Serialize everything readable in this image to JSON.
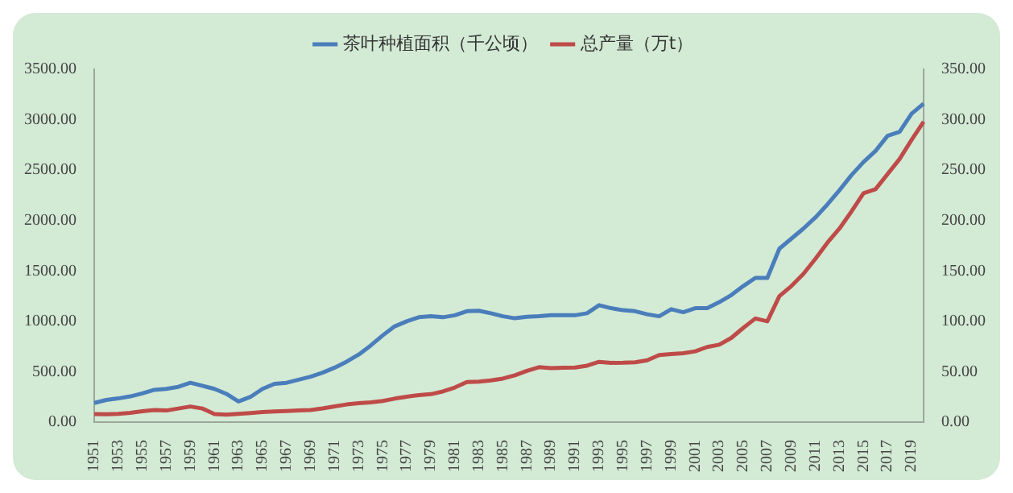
{
  "chart_data": {
    "type": "line",
    "categories": [
      "1951",
      null,
      "1953",
      null,
      "1955",
      null,
      "1957",
      null,
      "1959",
      null,
      "1961",
      null,
      "1963",
      null,
      "1965",
      null,
      "1967",
      null,
      "1969",
      null,
      "1971",
      null,
      "1973",
      null,
      "1975",
      null,
      "1977",
      null,
      "1979",
      null,
      "1981",
      null,
      "1983",
      null,
      "1985",
      null,
      "1987",
      null,
      "1989",
      null,
      "1991",
      null,
      "1993",
      null,
      "1995",
      null,
      "1997",
      null,
      "1999",
      null,
      "2001",
      null,
      "2003",
      null,
      "2005",
      null,
      "2007",
      null,
      "2009",
      null,
      "2011",
      null,
      "2013",
      null,
      "2015",
      null,
      "2017",
      null,
      "2019",
      null
    ],
    "series": [
      {
        "name": "茶叶种植面积（千公顷）",
        "color": "#4a7ebb",
        "values": [
          190,
          220,
          235,
          255,
          285,
          320,
          330,
          350,
          390,
          360,
          330,
          280,
          205,
          250,
          330,
          380,
          390,
          420,
          450,
          490,
          540,
          600,
          670,
          760,
          860,
          950,
          1000,
          1040,
          1050,
          1040,
          1060,
          1100,
          1105,
          1080,
          1050,
          1030,
          1045,
          1050,
          1060,
          1060,
          1060,
          1080,
          1160,
          1130,
          1110,
          1100,
          1070,
          1050,
          1120,
          1090,
          1130,
          1130,
          1190,
          1260,
          1350,
          1430,
          1430,
          1720,
          1820,
          1920,
          2030,
          2160,
          2300,
          2450,
          2580,
          2690,
          2840,
          2880,
          3060,
          3160
        ]
      },
      {
        "name": "总产量（万t）",
        "color": "#be4b48",
        "axis": "y2",
        "values": [
          8,
          7.8,
          8.2,
          9.2,
          10.8,
          12,
          11.5,
          13.5,
          15.5,
          13.5,
          8,
          7.4,
          8.2,
          9,
          10,
          10.5,
          11,
          11.5,
          12,
          13.6,
          15.6,
          17.5,
          18.8,
          19.6,
          21,
          23.3,
          25.2,
          26.8,
          27.7,
          30.4,
          34.3,
          39.7,
          40.1,
          41.4,
          43.2,
          46.4,
          50.8,
          54.5,
          53.5,
          54,
          54.2,
          56,
          59.8,
          58.8,
          58.9,
          59.3,
          61.3,
          66.5,
          67.6,
          68.3,
          70.2,
          74.5,
          76.8,
          83.5,
          93.5,
          102.8,
          100,
          125,
          135,
          147,
          162,
          178,
          192,
          209,
          227,
          231,
          246,
          261,
          280,
          298
        ]
      }
    ],
    "ylim": [
      0,
      3500
    ],
    "yticks": [
      {
        "value": 0,
        "label": "0.00"
      },
      {
        "value": 500,
        "label": "500.00"
      },
      {
        "value": 1000,
        "label": "1000.00"
      },
      {
        "value": 1500,
        "label": "1500.00"
      },
      {
        "value": 2000,
        "label": "2000.00"
      },
      {
        "value": 2500,
        "label": "2500.00"
      },
      {
        "value": 3000,
        "label": "3000.00"
      },
      {
        "value": 3500,
        "label": "3500.00"
      }
    ],
    "y2lim": [
      0,
      350
    ],
    "y2ticks": [
      {
        "value": 0,
        "label": "0.00"
      },
      {
        "value": 50,
        "label": "50.00"
      },
      {
        "value": 100,
        "label": "100.00"
      },
      {
        "value": 150,
        "label": "150.00"
      },
      {
        "value": 200,
        "label": "200.00"
      },
      {
        "value": 250,
        "label": "250.00"
      },
      {
        "value": 300,
        "label": "300.00"
      },
      {
        "value": 350,
        "label": "350.00"
      }
    ],
    "grid": false,
    "legend": "top",
    "marker": "none",
    "line_style": "solid"
  }
}
